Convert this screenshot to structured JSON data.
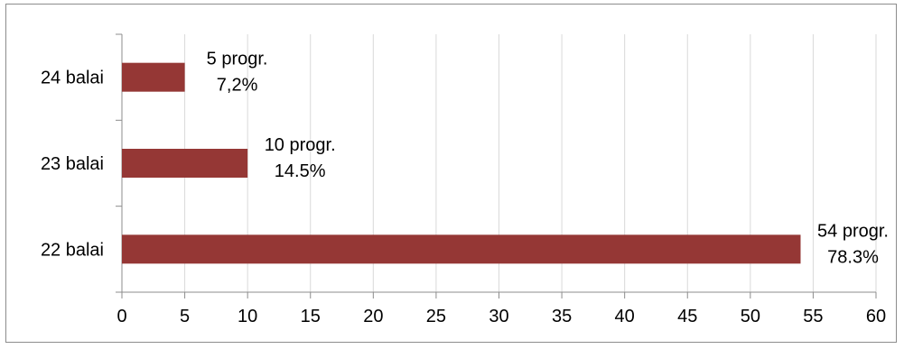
{
  "chart_data": {
    "type": "bar",
    "orientation": "horizontal",
    "categories": [
      "22 balai",
      "23 balai",
      "24 balai"
    ],
    "values": [
      54,
      10,
      5
    ],
    "data_labels": [
      [
        "54 progr.",
        "78.3%"
      ],
      [
        "10 progr.",
        "14.5%"
      ],
      [
        "5 progr.",
        "7,2%"
      ]
    ],
    "x_ticks": [
      "0",
      "5",
      "10",
      "15",
      "20",
      "25",
      "30",
      "35",
      "40",
      "45",
      "50",
      "55",
      "60"
    ],
    "xlim": [
      0,
      60
    ],
    "x_tick_step": 5,
    "grid": "vertical",
    "legend": "none",
    "bar_color": "#953735",
    "grid_color": "#d9d9d9",
    "axis_color": "#8c8c8c"
  }
}
